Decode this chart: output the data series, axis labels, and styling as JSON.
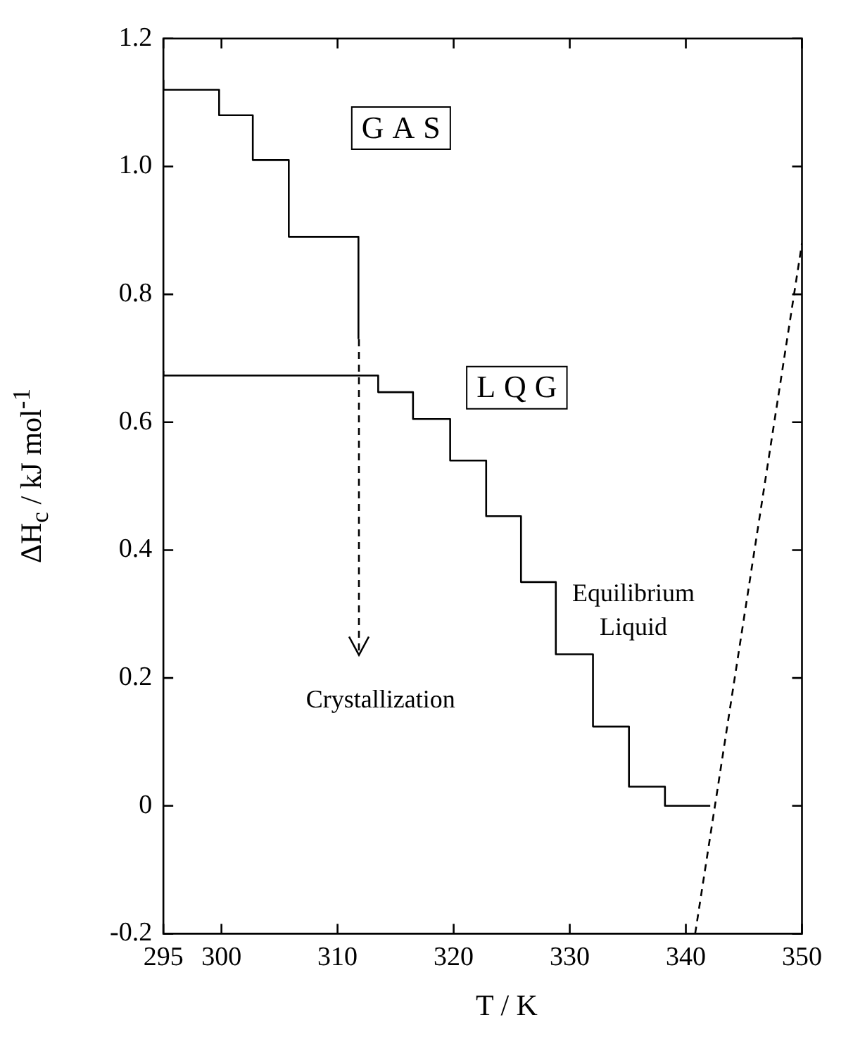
{
  "chart_data": {
    "type": "step",
    "xlabel": "T / K",
    "ylabel": "ΔH$_{c}$ / kJ mol$^{-1}$",
    "series": [
      {
        "name": "GAS",
        "color": "#000000",
        "line_style": "solid",
        "x": [
          295,
          299.8,
          302.7,
          305.8,
          308.7,
          311.8,
          311.8
        ],
        "values": [
          1.135,
          1.12,
          1.08,
          1.01,
          0.89,
          0.89,
          0.73
        ]
      },
      {
        "name": "LQG",
        "color": "#000000",
        "line_style": "solid",
        "x": [
          295,
          313.5,
          316.5,
          319.7,
          322.8,
          325.8,
          328.8,
          332,
          335.1,
          338.2,
          341.3,
          342.1
        ],
        "values": [
          0.68,
          0.673,
          0.647,
          0.605,
          0.54,
          0.453,
          0.35,
          0.237,
          0.124,
          0.03,
          0,
          0
        ]
      },
      {
        "type": "line",
        "color": "#000000",
        "line_style": "dashed",
        "x": [
          340.8,
          350
        ],
        "values": [
          -0.2,
          0.88
        ]
      }
    ],
    "annotations": [
      "Crystallization",
      "Equilibrium Liquid"
    ],
    "xlim": [
      295,
      350
    ],
    "xticks": [
      295,
      300,
      310,
      320,
      330,
      340,
      350
    ],
    "ylim": [
      -0.2,
      1.2
    ],
    "yticks": [
      -0.2,
      0,
      0.2,
      0.4,
      0.6,
      0.8,
      {
        "value": 1,
        "label": "1.0"
      },
      1.2
    ],
    "marker": "none",
    "grid": false,
    "legend": false
  }
}
